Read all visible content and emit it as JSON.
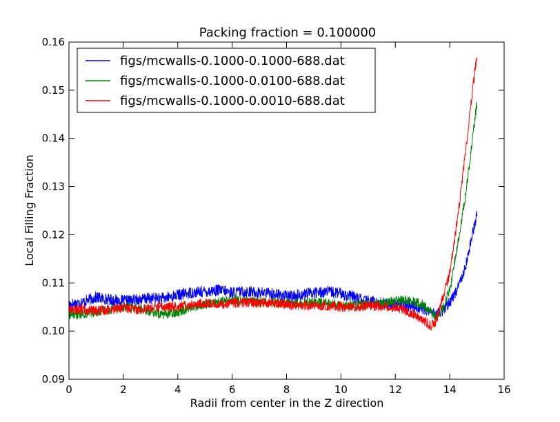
{
  "chart_data": {
    "type": "line",
    "title": "Packing fraction = 0.100000",
    "xlabel": "Radii from center in the Z direction",
    "ylabel": "Local Filling Fraction",
    "xlim": [
      0,
      16
    ],
    "ylim": [
      0.09,
      0.16
    ],
    "xticks": [
      "0",
      "2",
      "4",
      "6",
      "8",
      "10",
      "12",
      "14",
      "16"
    ],
    "yticks": [
      "0.09",
      "0.10",
      "0.11",
      "0.12",
      "0.13",
      "0.14",
      "0.15",
      "0.16"
    ],
    "grid": false,
    "legend_position": "top-left",
    "series": [
      {
        "name": "figs/mcwalls-0.1000-0.1000-688.dat",
        "color": "#0000ff",
        "x": [
          0,
          0.5,
          1,
          1.5,
          2,
          2.5,
          3,
          3.5,
          4,
          4.5,
          5,
          5.5,
          6,
          6.5,
          7,
          7.5,
          8,
          8.5,
          9,
          9.5,
          10,
          10.5,
          11,
          11.5,
          12,
          12.5,
          13,
          13.3,
          13.5,
          13.7,
          14,
          14.3,
          14.6,
          14.8,
          15
        ],
        "y": [
          0.1055,
          0.106,
          0.107,
          0.1065,
          0.1062,
          0.1065,
          0.1068,
          0.1068,
          0.1075,
          0.108,
          0.1082,
          0.1085,
          0.108,
          0.1082,
          0.108,
          0.1078,
          0.1072,
          0.1075,
          0.108,
          0.1082,
          0.1078,
          0.107,
          0.1062,
          0.1058,
          0.1055,
          0.1052,
          0.1048,
          0.104,
          0.1035,
          0.104,
          0.106,
          0.109,
          0.114,
          0.119,
          0.1245
        ],
        "noise": 0.0012
      },
      {
        "name": "figs/mcwalls-0.1000-0.0100-688.dat",
        "color": "#008000",
        "x": [
          0,
          0.5,
          1,
          1.5,
          2,
          2.5,
          3,
          3.5,
          4,
          4.5,
          5,
          5.5,
          6,
          6.5,
          7,
          7.5,
          8,
          8.5,
          9,
          9.5,
          10,
          10.5,
          11,
          11.5,
          12,
          12.5,
          13,
          13.3,
          13.5,
          13.7,
          14,
          14.3,
          14.6,
          14.8,
          15
        ],
        "y": [
          0.1035,
          0.1035,
          0.104,
          0.1045,
          0.105,
          0.1048,
          0.104,
          0.1035,
          0.104,
          0.105,
          0.1055,
          0.106,
          0.1065,
          0.1062,
          0.106,
          0.106,
          0.1058,
          0.1058,
          0.106,
          0.1058,
          0.1055,
          0.1055,
          0.1055,
          0.1058,
          0.1062,
          0.1065,
          0.1055,
          0.104,
          0.103,
          0.104,
          0.1085,
          0.118,
          0.129,
          0.138,
          0.1475
        ],
        "noise": 0.001
      },
      {
        "name": "figs/mcwalls-0.1000-0.0010-688.dat",
        "color": "#ff0000",
        "x": [
          0,
          0.5,
          1,
          1.5,
          2,
          2.5,
          3,
          3.5,
          4,
          4.5,
          5,
          5.5,
          6,
          6.5,
          7,
          7.5,
          8,
          8.5,
          9,
          9.5,
          10,
          10.5,
          11,
          11.5,
          12,
          12.5,
          13,
          13.3,
          13.5,
          13.7,
          14,
          14.3,
          14.6,
          14.8,
          15
        ],
        "y": [
          0.1045,
          0.1045,
          0.1042,
          0.1045,
          0.1048,
          0.1045,
          0.1048,
          0.105,
          0.1052,
          0.1055,
          0.1058,
          0.1055,
          0.1058,
          0.106,
          0.1058,
          0.1058,
          0.1055,
          0.1052,
          0.1052,
          0.1052,
          0.105,
          0.105,
          0.1052,
          0.1052,
          0.105,
          0.104,
          0.1025,
          0.101,
          0.102,
          0.106,
          0.112,
          0.124,
          0.138,
          0.148,
          0.1575
        ],
        "noise": 0.001
      }
    ]
  }
}
